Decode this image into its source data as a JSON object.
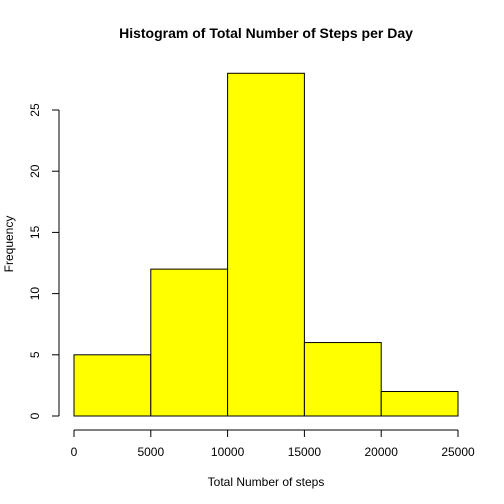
{
  "chart_data": {
    "type": "bar",
    "title": "Histogram of Total Number of Steps per Day",
    "xlabel": "Total Number of steps",
    "ylabel": "Frequency",
    "bins": [
      {
        "start": 0,
        "end": 5000,
        "count": 5
      },
      {
        "start": 5000,
        "end": 10000,
        "count": 12
      },
      {
        "start": 10000,
        "end": 15000,
        "count": 28
      },
      {
        "start": 15000,
        "end": 20000,
        "count": 6
      },
      {
        "start": 20000,
        "end": 25000,
        "count": 2
      }
    ],
    "xticks": [
      0,
      5000,
      10000,
      15000,
      20000,
      25000
    ],
    "xtick_labels": [
      "0",
      "5000",
      "10000",
      "15000",
      "20000",
      "25000"
    ],
    "yticks": [
      0,
      5,
      10,
      15,
      20,
      25
    ],
    "ytick_labels": [
      "0",
      "5",
      "10",
      "15",
      "20",
      "25"
    ],
    "xlim": [
      0,
      25000
    ],
    "ylim": [
      0,
      28
    ],
    "bar_color": "#ffff00",
    "edge_color": "#000000",
    "grid": false,
    "legend": "none"
  }
}
